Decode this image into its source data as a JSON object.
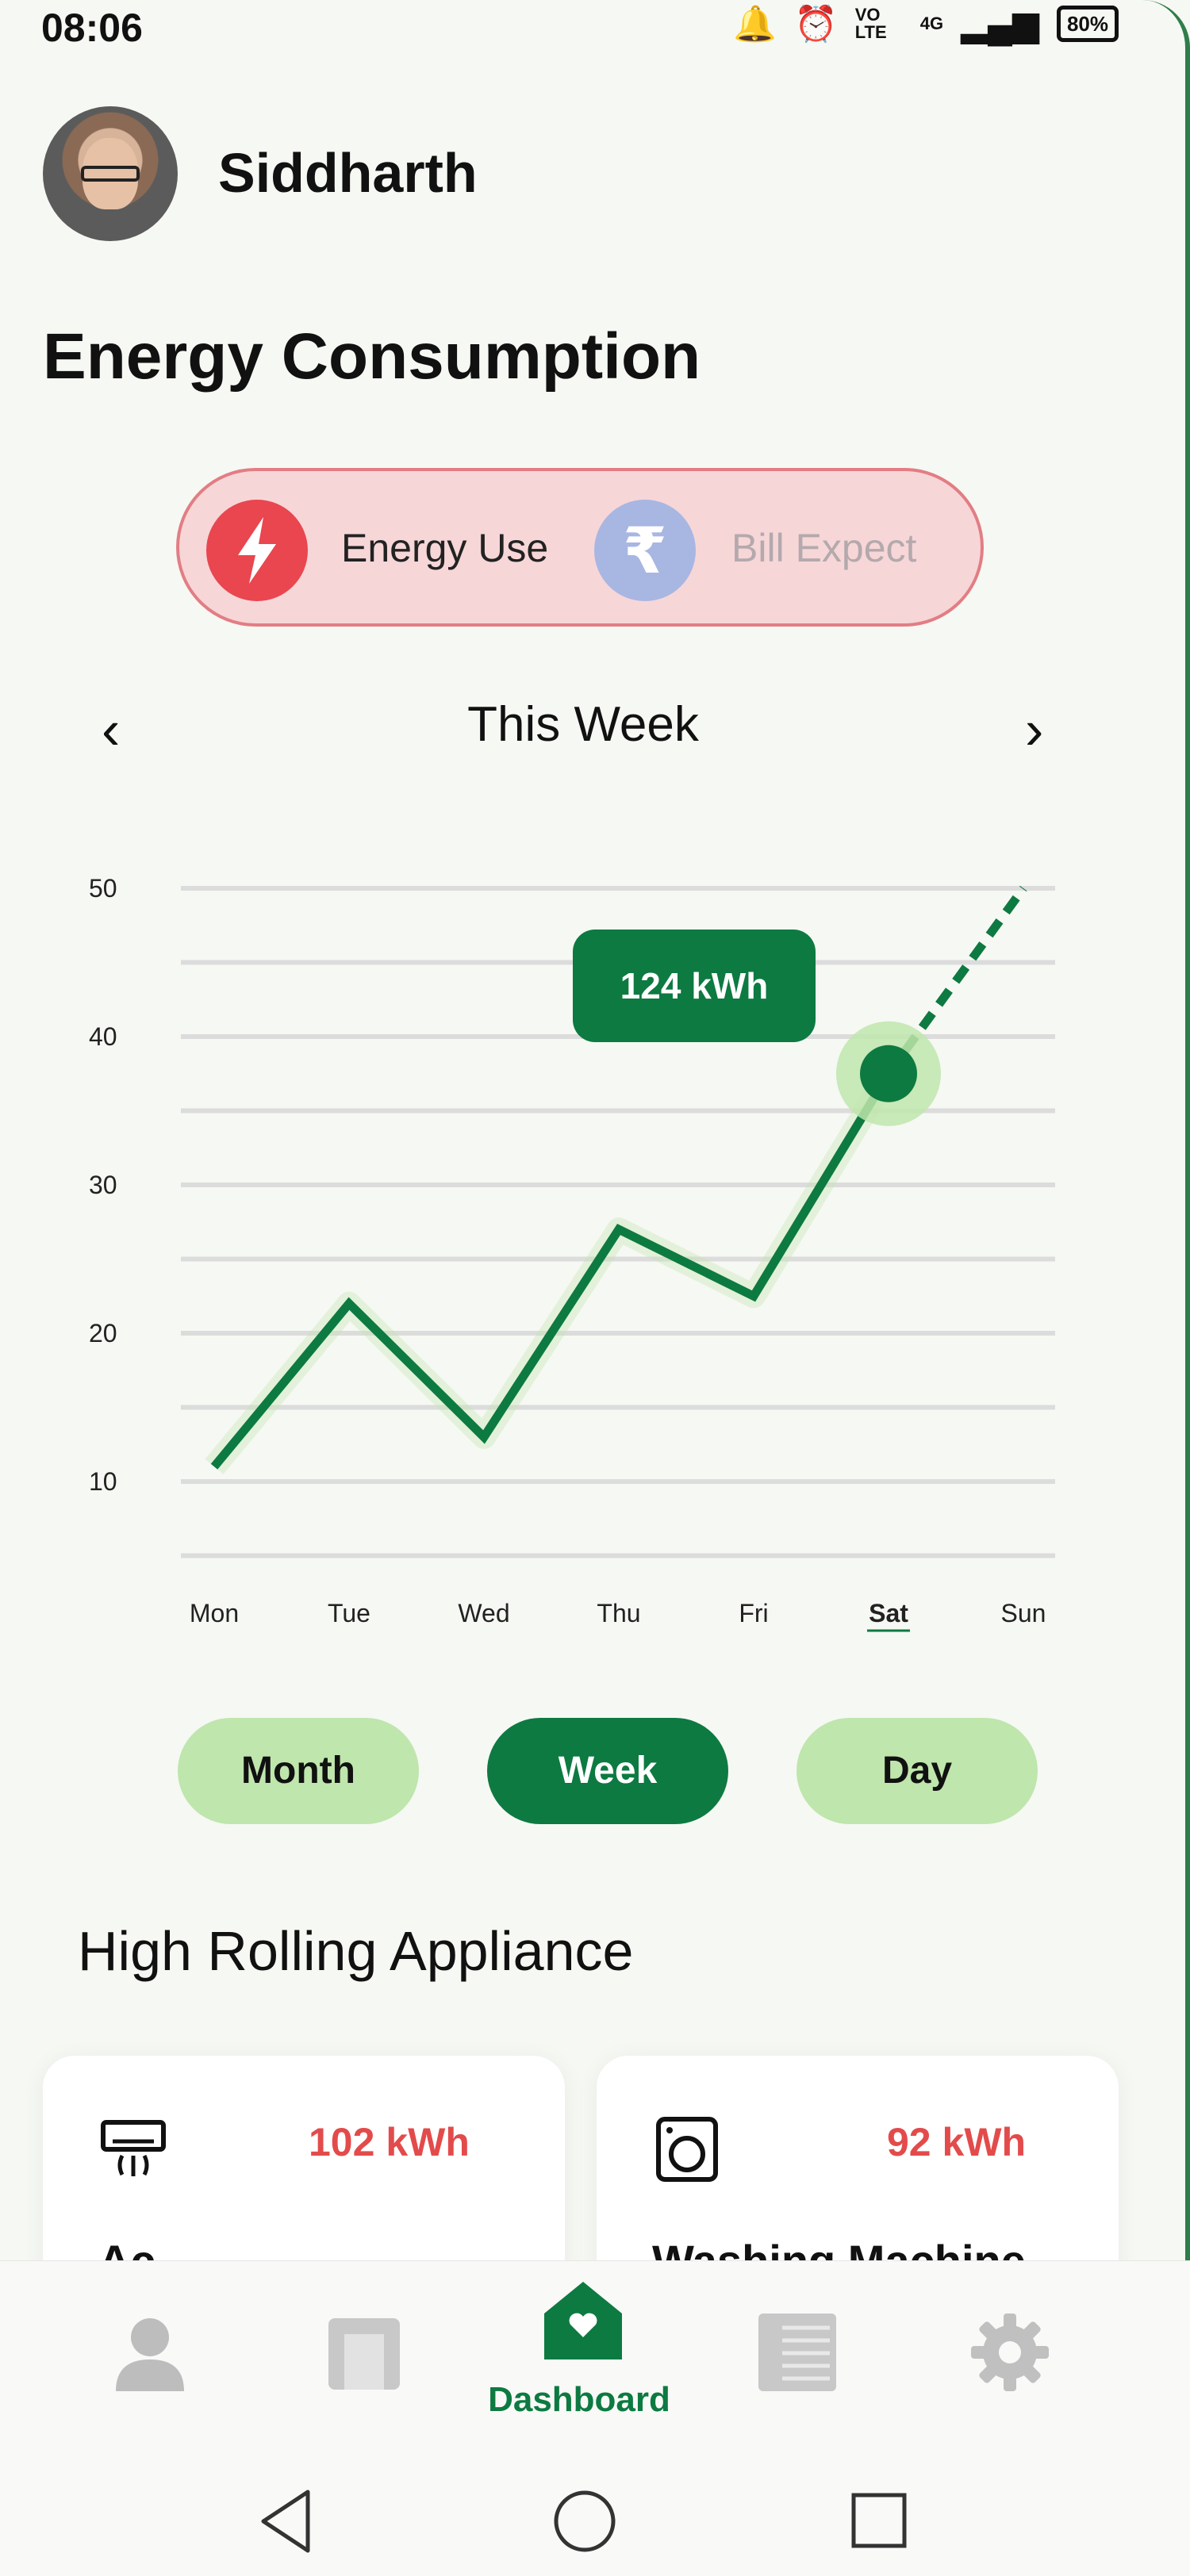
{
  "status_bar": {
    "time": "08:06",
    "signal_text": "VO LTE",
    "network": "4G",
    "battery": "80%"
  },
  "user": {
    "name": "Siddharth"
  },
  "page_title": "Energy Consumption",
  "toggle": {
    "energy_label": "Energy Use",
    "bill_label": "Bill Expect",
    "active": "Energy Use"
  },
  "period_nav": {
    "label": "This Week",
    "prev_icon": "chevron-left-icon",
    "next_icon": "chevron-right-icon"
  },
  "tooltip": {
    "text": "124 kWh"
  },
  "chart_data": {
    "type": "line",
    "categories": [
      "Mon",
      "Tue",
      "Wed",
      "Thu",
      "Fri",
      "Sat",
      "Sun"
    ],
    "series": [
      {
        "values": [
          11,
          22,
          13,
          27,
          22.5,
          37.5,
          50
        ],
        "projected_from_index": 5
      }
    ],
    "ylim": [
      5,
      50
    ],
    "yticks": [
      10,
      20,
      30,
      40,
      50
    ],
    "highlighted_category": "Sat",
    "grid": true,
    "line_color": "#0d7a41"
  },
  "period_buttons": [
    {
      "label": "Month",
      "active": false
    },
    {
      "label": "Week",
      "active": true
    },
    {
      "label": "Day",
      "active": false
    }
  ],
  "section_title": "High Rolling Appliance",
  "appliances": [
    {
      "name": "Ac",
      "kwh": "102 kWh",
      "icon": "air-conditioner-icon"
    },
    {
      "name": "Washing Machine",
      "kwh": "92 kWh",
      "icon": "washing-machine-icon"
    }
  ],
  "bottom_nav": {
    "items": [
      "profile-icon",
      "devices-icon",
      "dashboard-icon",
      "reports-icon",
      "settings-icon"
    ],
    "active_label": "Dashboard"
  },
  "colors": {
    "accent": "#0d7a41",
    "accent_light": "#bfe6ad",
    "alert": "#e34b4b",
    "toggle_bg": "#f7d6d8"
  }
}
